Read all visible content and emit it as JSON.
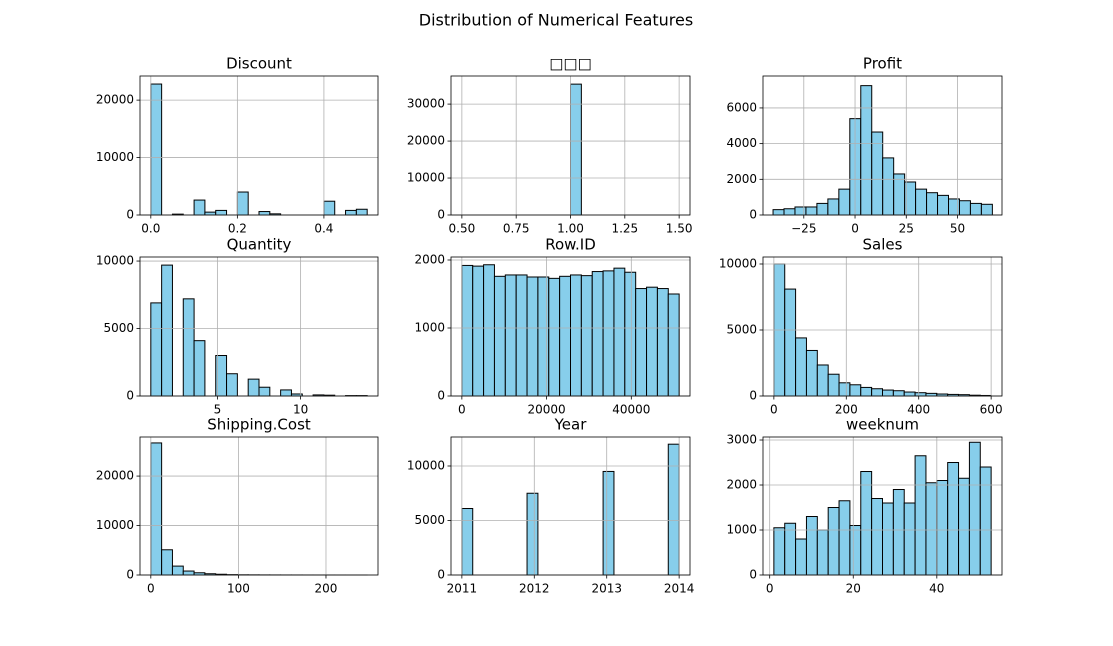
{
  "title": "Distribution of Numerical Features",
  "chart_data": [
    {
      "type": "histogram",
      "title": "Discount",
      "color": "#87ceeb",
      "edgecolor": "#000000",
      "grid": true,
      "bins": [
        0,
        0.025,
        0.05,
        0.075,
        0.1,
        0.125,
        0.15,
        0.175,
        0.2,
        0.225,
        0.25,
        0.275,
        0.3,
        0.325,
        0.35,
        0.375,
        0.4,
        0.425,
        0.45,
        0.475,
        0.5
      ],
      "values": [
        22800,
        0,
        150,
        0,
        2600,
        500,
        800,
        0,
        4000,
        0,
        600,
        200,
        0,
        0,
        0,
        0,
        2400,
        0,
        800,
        1000
      ],
      "xlim": [
        -0.025,
        0.525
      ],
      "xticks": [
        {
          "value": 0,
          "label": "0.0"
        },
        0.2,
        0.4
      ],
      "ylim": [
        0,
        24200
      ],
      "yticks": [
        0,
        10000,
        20000
      ]
    },
    {
      "type": "histogram",
      "title": "□□□",
      "color": "#87ceeb",
      "edgecolor": "#000000",
      "grid": true,
      "bins": [
        0.5,
        0.55,
        0.6,
        0.65,
        0.7,
        0.75,
        0.8,
        0.85,
        0.9,
        0.95,
        1.0,
        1.05,
        1.1,
        1.15,
        1.2,
        1.25,
        1.3,
        1.35,
        1.4,
        1.45,
        1.5
      ],
      "values": [
        0,
        0,
        0,
        0,
        0,
        0,
        0,
        0,
        0,
        0,
        35400,
        0,
        0,
        0,
        0,
        0,
        0,
        0,
        0,
        0
      ],
      "xlim": [
        0.45,
        1.55
      ],
      "xticks": [
        {
          "value": 0.5,
          "label": "0.50"
        },
        0.75,
        {
          "value": 1,
          "label": "1.00"
        },
        1.25,
        {
          "value": 1.5,
          "label": "1.50"
        }
      ],
      "ylim": [
        0,
        37600
      ],
      "yticks": [
        0,
        10000,
        20000,
        30000
      ]
    },
    {
      "type": "histogram",
      "title": "Profit",
      "color": "#87ceeb",
      "edgecolor": "#000000",
      "grid": true,
      "bins": [
        -40,
        -34.65,
        -29.3,
        -23.95,
        -18.6,
        -13.25,
        -7.9,
        -2.55,
        2.8,
        8.15,
        13.5,
        18.85,
        24.2,
        29.55,
        34.9,
        40.25,
        45.6,
        50.95,
        56.3,
        61.65,
        67
      ],
      "values": [
        300,
        350,
        450,
        450,
        650,
        900,
        1450,
        5400,
        7250,
        4650,
        3200,
        2300,
        1850,
        1450,
        1250,
        1100,
        900,
        800,
        650,
        600
      ],
      "xlim": [
        -44.9,
        71.7
      ],
      "xticks": [
        {
          "value": -25,
          "label": "−25"
        },
        0,
        25,
        50
      ],
      "ylim": [
        0,
        7790
      ],
      "yticks": [
        0,
        2000,
        4000,
        6000
      ]
    },
    {
      "type": "histogram",
      "title": "Quantity",
      "color": "#87ceeb",
      "edgecolor": "#000000",
      "grid": true,
      "bins": [
        1,
        1.65,
        2.3,
        2.95,
        3.6,
        4.25,
        4.9,
        5.55,
        6.2,
        6.85,
        7.5,
        8.15,
        8.8,
        9.45,
        10.1,
        10.75,
        11.4,
        12.05,
        12.7,
        13.35,
        14
      ],
      "values": [
        6900,
        9700,
        0,
        7200,
        4100,
        0,
        3000,
        1650,
        0,
        1250,
        650,
        0,
        450,
        150,
        0,
        80,
        60,
        0,
        30,
        30
      ],
      "xlim": [
        0.35,
        14.65
      ],
      "xticks": [
        5,
        10
      ],
      "ylim": [
        0,
        10300
      ],
      "yticks": [
        0,
        5000,
        10000
      ]
    },
    {
      "type": "histogram",
      "title": "Row.ID",
      "color": "#87ceeb",
      "edgecolor": "#000000",
      "grid": true,
      "bins": [
        1,
        2565.45,
        5129.9,
        7694.35,
        10258.8,
        12823.25,
        15387.7,
        17952.15,
        20516.6,
        23081.05,
        25645.5,
        28209.95,
        30774.4,
        33338.85,
        35903.3,
        38467.75,
        41032.2,
        43596.65,
        46161.1,
        48725.55,
        51290
      ],
      "values": [
        1920,
        1910,
        1930,
        1760,
        1780,
        1780,
        1750,
        1750,
        1730,
        1760,
        1780,
        1770,
        1830,
        1840,
        1880,
        1820,
        1580,
        1600,
        1580,
        1500
      ],
      "xlim": [
        -2563,
        53854
      ],
      "xticks": [
        0,
        20000,
        40000
      ],
      "ylim": [
        0,
        2044
      ],
      "yticks": [
        0,
        1000,
        2000
      ]
    },
    {
      "type": "histogram",
      "title": "Sales",
      "color": "#87ceeb",
      "edgecolor": "#000000",
      "grid": true,
      "bins": [
        0,
        30,
        60,
        90,
        120,
        150,
        180,
        210,
        240,
        270,
        300,
        330,
        360,
        390,
        420,
        450,
        480,
        510,
        540,
        570,
        600
      ],
      "values": [
        10000,
        8100,
        4400,
        3450,
        2350,
        1650,
        1000,
        850,
        650,
        550,
        450,
        400,
        300,
        250,
        200,
        150,
        120,
        100,
        60,
        40
      ],
      "xlim": [
        -30,
        630
      ],
      "xticks": [
        0,
        200,
        400,
        600
      ],
      "ylim": [
        0,
        10530
      ],
      "yticks": [
        0,
        5000,
        10000
      ]
    },
    {
      "type": "histogram",
      "title": "Shipping.Cost",
      "color": "#87ceeb",
      "edgecolor": "#000000",
      "grid": true,
      "bins": [
        0,
        12.35,
        24.7,
        37.05,
        49.4,
        61.75,
        74.1,
        86.45,
        98.8,
        111.15,
        123.5,
        135.85,
        148.2,
        160.55,
        172.9,
        185.25,
        197.6,
        209.95,
        222.3,
        234.65,
        247
      ],
      "values": [
        26700,
        5100,
        1800,
        800,
        450,
        250,
        150,
        70,
        40,
        30,
        20,
        15,
        10,
        8,
        5,
        4,
        3,
        2,
        1,
        1
      ],
      "xlim": [
        -12.35,
        259.4
      ],
      "xticks": [
        0,
        100,
        200
      ],
      "ylim": [
        0,
        27900
      ],
      "yticks": [
        0,
        10000,
        20000
      ]
    },
    {
      "type": "histogram",
      "title": "Year",
      "color": "#87ceeb",
      "edgecolor": "#000000",
      "grid": true,
      "bins": [
        2011,
        2011.15,
        2011.3,
        2011.45,
        2011.6,
        2011.75,
        2011.9,
        2012.05,
        2012.2,
        2012.35,
        2012.5,
        2012.65,
        2012.8,
        2012.95,
        2013.1,
        2013.25,
        2013.4,
        2013.55,
        2013.7,
        2013.85,
        2014
      ],
      "values": [
        6100,
        0,
        0,
        0,
        0,
        0,
        7500,
        0,
        0,
        0,
        0,
        0,
        0,
        9500,
        0,
        0,
        0,
        0,
        0,
        12000
      ],
      "xlim": [
        2010.85,
        2014.15
      ],
      "xticks": [
        2011,
        2012,
        2013,
        2014
      ],
      "ylim": [
        0,
        12660
      ],
      "yticks": [
        0,
        5000,
        10000
      ]
    },
    {
      "type": "histogram",
      "title": "weeknum",
      "color": "#87ceeb",
      "edgecolor": "#000000",
      "grid": true,
      "bins": [
        1,
        3.6,
        6.2,
        8.8,
        11.4,
        14,
        16.6,
        19.2,
        21.8,
        24.4,
        27,
        29.6,
        32.2,
        34.8,
        37.4,
        40,
        42.6,
        45.2,
        47.8,
        50.4,
        53
      ],
      "values": [
        1050,
        1150,
        800,
        1300,
        1000,
        1500,
        1650,
        1100,
        2300,
        1700,
        1600,
        1900,
        1600,
        2650,
        2050,
        2100,
        2500,
        2150,
        2950,
        2400
      ],
      "xlim": [
        -1.6,
        55.6
      ],
      "xticks": [
        0,
        20,
        40
      ],
      "ylim": [
        0,
        3067
      ],
      "yticks": [
        0,
        1000,
        2000,
        3000
      ]
    }
  ]
}
